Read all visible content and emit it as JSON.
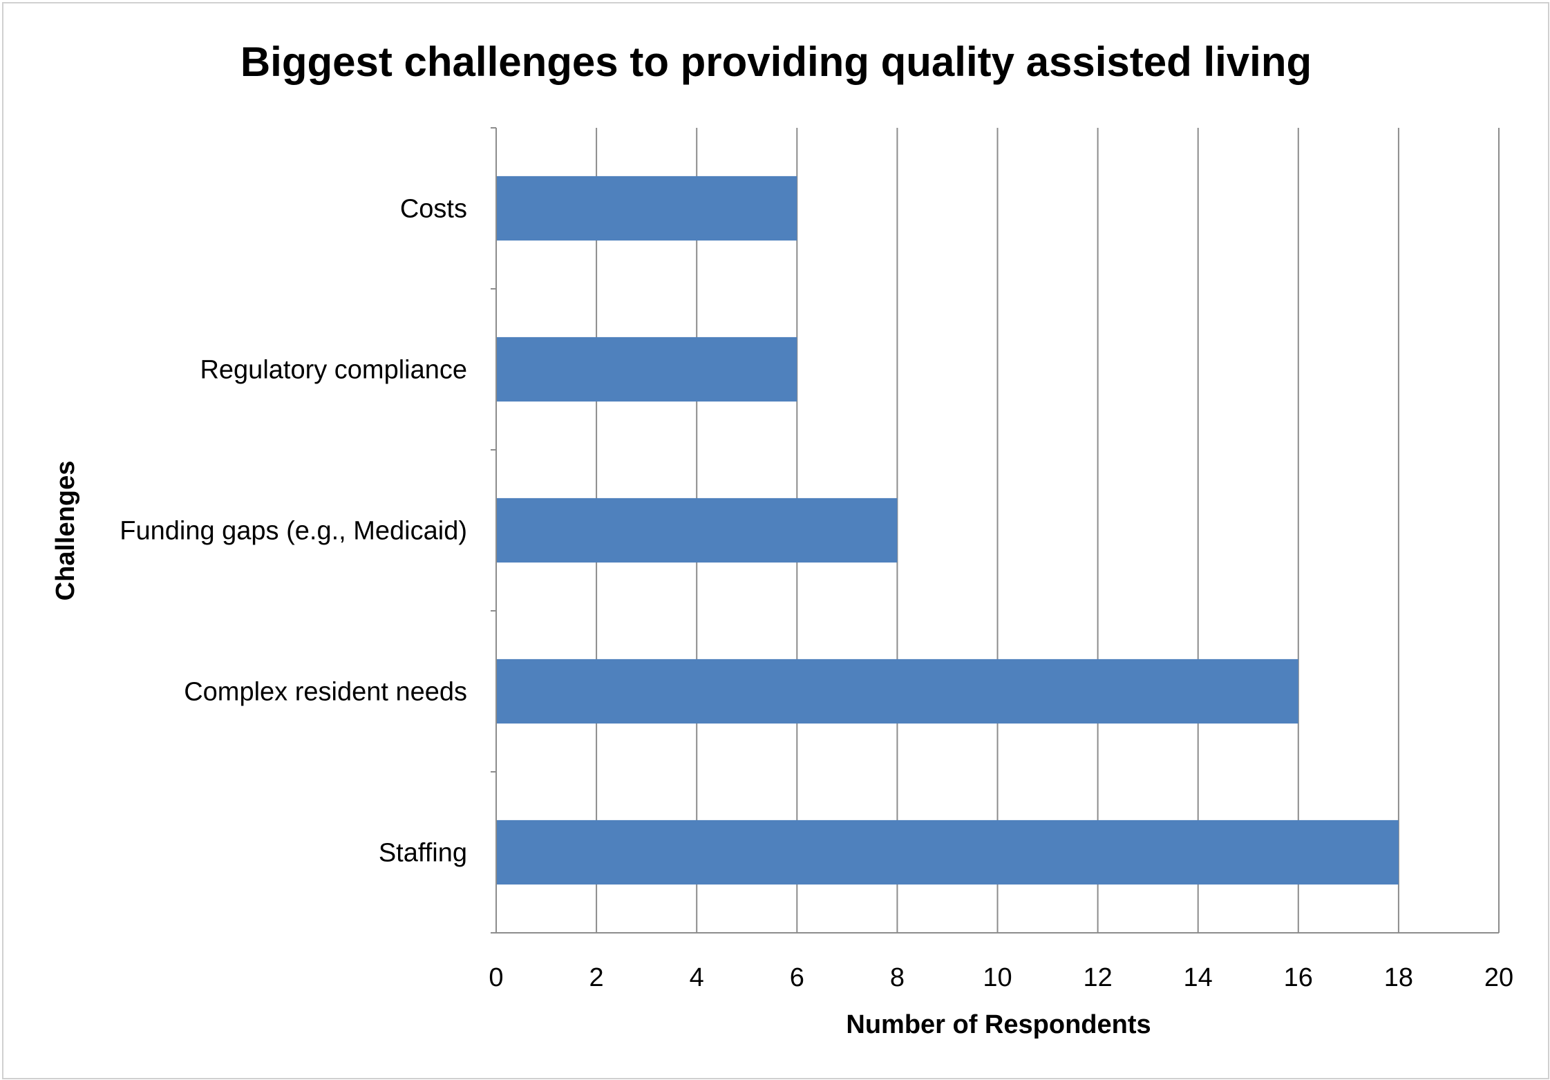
{
  "chart_data": {
    "type": "bar",
    "orientation": "horizontal",
    "title": "Biggest challenges to providing quality assisted living",
    "xlabel": "Number of Respondents",
    "ylabel": "Challenges",
    "categories": [
      "Costs",
      "Regulatory compliance",
      "Funding gaps (e.g., Medicaid)",
      "Complex resident needs",
      "Staffing"
    ],
    "values": [
      6,
      6,
      8,
      16,
      18
    ],
    "xlim": [
      0,
      20
    ],
    "xticks": [
      0,
      2,
      4,
      6,
      8,
      10,
      12,
      14,
      16,
      18,
      20
    ],
    "xtick_labels": [
      "0",
      "2",
      "4",
      "6",
      "8",
      "10",
      "12",
      "14",
      "16",
      "18",
      "20"
    ],
    "grid": "vertical",
    "legend": "none",
    "bar_color": "#4f81bd",
    "grid_color": "#8c8c8c"
  }
}
